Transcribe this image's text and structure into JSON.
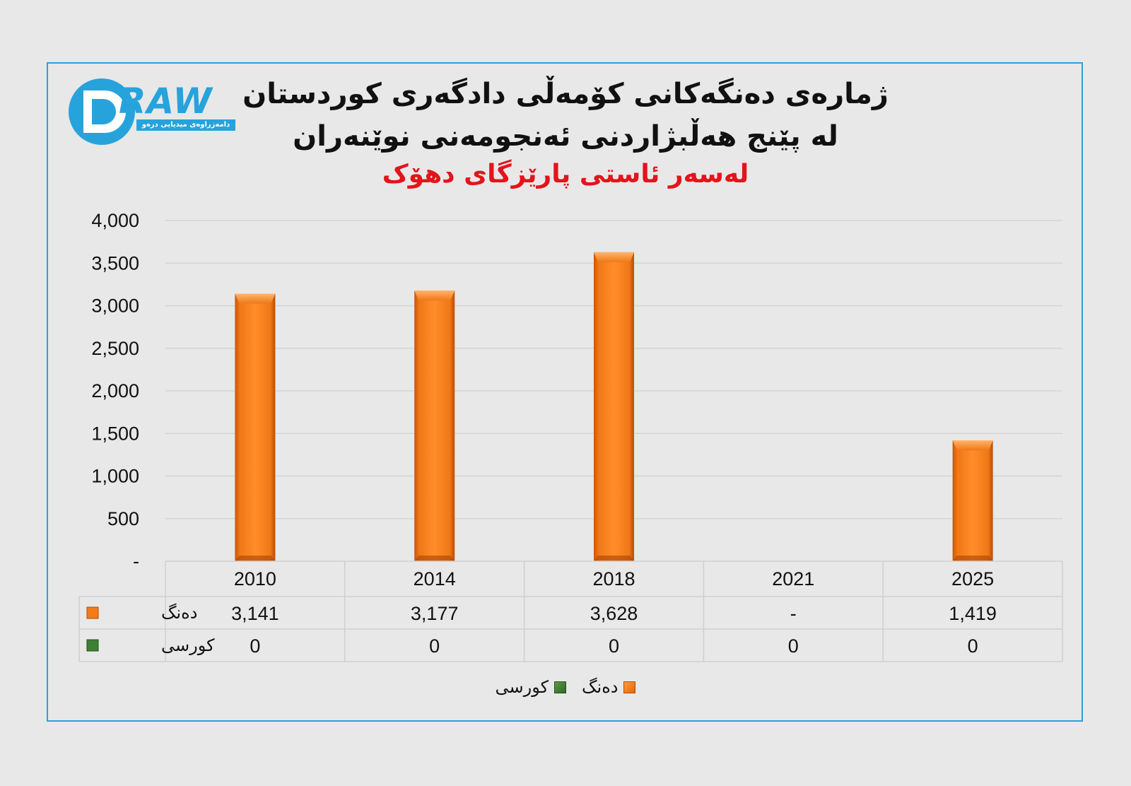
{
  "brand": {
    "logo_word": "RAW",
    "logo_tagline": "دامەزراوەی میدیایی درەو",
    "logo_color": "#27a3dc"
  },
  "titles": {
    "line1": "ژمارەی دەنگەکانی کۆمەڵی دادگەری کوردستان",
    "line2": "لە پێنج هەڵبژاردنی ئەنجومەنی نوێنەران",
    "line3": "لەسەر ئاستی پارێزگای دهۆک"
  },
  "colors": {
    "frame": "#27a3dc",
    "votes": "#f47a1a",
    "seats": "#3f7f35",
    "subtitle": "#e4141b"
  },
  "chart_data": {
    "type": "bar",
    "categories": [
      "2010",
      "2014",
      "2018",
      "2021",
      "2025"
    ],
    "series": [
      {
        "name": "دەنگ",
        "values": [
          3141,
          3177,
          3628,
          null,
          1419
        ],
        "labels": [
          "3,141",
          "3,177",
          "3,628",
          "-",
          "1,419"
        ],
        "color": "#f47a1a"
      },
      {
        "name": "کورسی",
        "values": [
          0,
          0,
          0,
          0,
          0
        ],
        "labels": [
          "0",
          "0",
          "0",
          "0",
          "0"
        ],
        "color": "#3f7f35"
      }
    ],
    "ylim": [
      0,
      4000
    ],
    "yticks": [
      0,
      500,
      1000,
      1500,
      2000,
      2500,
      3000,
      3500,
      4000
    ],
    "ytick_labels": [
      "-",
      "500",
      "1,000",
      "1,500",
      "2,000",
      "2,500",
      "3,000",
      "3,500",
      "4,000"
    ],
    "grid": true,
    "legend": "bottom",
    "data_table": true
  }
}
